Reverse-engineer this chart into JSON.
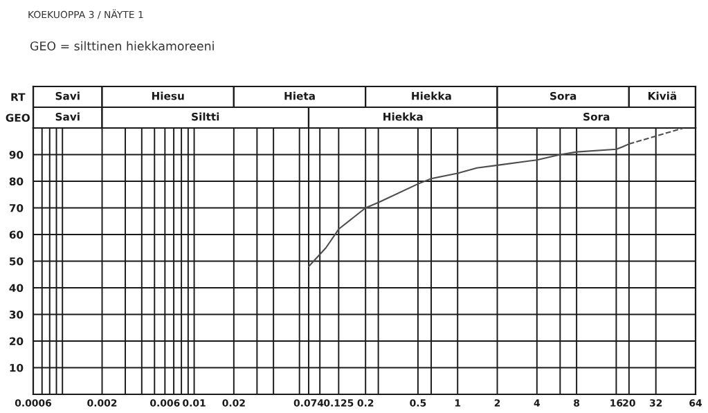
{
  "chart_data": [
    {
      "type": "bar",
      "orientation": "horizontal",
      "title": "KOEKUOPPA 3 / NÄYTE 1",
      "subtitle": "GEO = silttinen hiekkamoreeni",
      "categories": [
        "RT",
        "GEO"
      ],
      "log": "x",
      "xlim": [
        0.0006,
        64
      ],
      "tick_labels": "y",
      "series": [
        {
          "color": "#ffffff",
          "base": [
            0.0006,
            0.0006
          ],
          "values": [
            0.0014,
            0.0014
          ],
          "value_labels": [
            "Savi",
            "Savi"
          ]
        },
        {
          "color": "#ffffff",
          "base": [
            0.002,
            0.002
          ],
          "values": [
            0.018,
            0.072
          ],
          "value_labels": [
            "Hiesu",
            "Siltti"
          ]
        },
        {
          "color": "#ffffff",
          "base": [
            0.02,
            0.074
          ],
          "values": [
            0.18,
            1.926
          ],
          "value_labels": [
            "Hieta",
            "Hiekka"
          ]
        },
        {
          "color": "#ffffff",
          "base": [
            0.2,
            2
          ],
          "values": [
            1.8,
            62
          ],
          "value_labels": [
            "Hiekka",
            "Sora"
          ]
        },
        {
          "color": "#ffffff",
          "base": [
            2,
            null
          ],
          "values": [
            18,
            null
          ],
          "value_labels": [
            "Sora",
            null
          ]
        },
        {
          "color": "#ffffff",
          "base": [
            20,
            null
          ],
          "values": [
            44,
            null
          ],
          "value_labels": [
            "Kiviä",
            null
          ]
        }
      ]
    },
    {
      "type": "line",
      "log": "x",
      "grid": true,
      "xlim": [
        0.0006,
        64
      ],
      "ylim": [
        0,
        100
      ],
      "xticks": [
        0.0006,
        {
          "value": 0.0007,
          "label": null
        },
        {
          "value": 0.0008,
          "label": null
        },
        {
          "value": 0.0009,
          "label": null
        },
        {
          "value": 0.001,
          "label": null
        },
        0.002,
        {
          "value": 0.003,
          "label": null
        },
        {
          "value": 0.004,
          "label": null
        },
        {
          "value": 0.005,
          "label": null
        },
        0.006,
        {
          "value": 0.007,
          "label": null
        },
        {
          "value": 0.008,
          "label": null
        },
        {
          "value": 0.009,
          "label": null
        },
        0.01,
        0.02,
        {
          "value": 0.03,
          "label": null
        },
        {
          "value": 0.04,
          "label": null
        },
        {
          "value": 0.063,
          "label": null
        },
        0.074,
        {
          "value": 0.09,
          "label": null
        },
        0.125,
        0.2,
        {
          "value": 0.25,
          "label": null
        },
        0.5,
        {
          "value": 0.63,
          "label": null
        },
        1,
        2,
        4,
        {
          "value": 6,
          "label": null
        },
        8,
        16,
        20,
        32,
        64
      ],
      "yticks": [
        10,
        20,
        30,
        40,
        50,
        60,
        70,
        80,
        90
      ],
      "x": [
        0.074,
        0.1,
        0.125,
        0.2,
        0.25,
        0.5,
        0.63,
        1,
        1.4,
        2,
        4,
        6,
        8,
        16,
        18,
        20
      ],
      "series": [
        {
          "color": "#4d4d4d",
          "line_style": "solid",
          "values": [
            48,
            55,
            62,
            70,
            72,
            79,
            81,
            83,
            85,
            86,
            88,
            90,
            91,
            92,
            93,
            94
          ]
        },
        {
          "color": "#4d4d4d",
          "line_style": "dashed",
          "x": [
            20,
            52
          ],
          "values": [
            94,
            100
          ]
        }
      ]
    }
  ]
}
